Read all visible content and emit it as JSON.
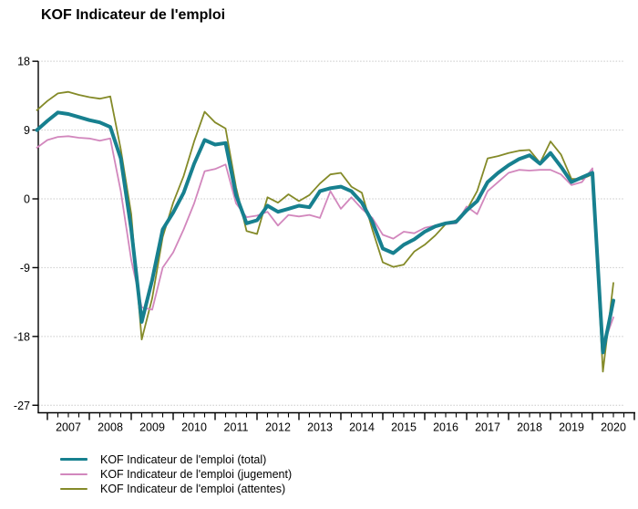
{
  "title": "KOF Indicateur de l'emploi",
  "chart_data": {
    "type": "line",
    "title": "KOF Indicateur de l'emploi",
    "xlabel": "",
    "ylabel": "",
    "ylim": [
      -27,
      18
    ],
    "yticks": [
      18,
      9,
      0,
      -9,
      -18,
      -27
    ],
    "xtick_years": [
      "2007",
      "2008",
      "2009",
      "2010",
      "2011",
      "2012",
      "2013",
      "2014",
      "2015",
      "2016",
      "2017",
      "2018",
      "2019",
      "2020"
    ],
    "grid": true,
    "legend_position": "bottom-left",
    "categories": [
      "2006Q4",
      "2007Q1",
      "2007Q2",
      "2007Q3",
      "2007Q4",
      "2008Q1",
      "2008Q2",
      "2008Q3",
      "2008Q4",
      "2009Q1",
      "2009Q2",
      "2009Q3",
      "2009Q4",
      "2010Q1",
      "2010Q2",
      "2010Q3",
      "2010Q4",
      "2011Q1",
      "2011Q2",
      "2011Q3",
      "2011Q4",
      "2012Q1",
      "2012Q2",
      "2012Q3",
      "2012Q4",
      "2013Q1",
      "2013Q2",
      "2013Q3",
      "2013Q4",
      "2014Q1",
      "2014Q2",
      "2014Q3",
      "2014Q4",
      "2015Q1",
      "2015Q2",
      "2015Q3",
      "2015Q4",
      "2016Q1",
      "2016Q2",
      "2016Q3",
      "2016Q4",
      "2017Q1",
      "2017Q2",
      "2017Q3",
      "2017Q4",
      "2018Q1",
      "2018Q2",
      "2018Q3",
      "2018Q4",
      "2019Q1",
      "2019Q2",
      "2019Q3",
      "2019Q4",
      "2020Q1",
      "2020Q2",
      "2020Q3"
    ],
    "series": [
      {
        "name": "KOF Indicateur de l'emploi (total)",
        "color": "#17808f",
        "width": 4,
        "values": [
          9.0,
          10.2,
          11.3,
          11.1,
          10.7,
          10.3,
          10.0,
          9.4,
          5.3,
          -4.0,
          -16.1,
          -10.6,
          -4.0,
          -1.8,
          0.8,
          4.6,
          7.7,
          7.1,
          7.3,
          0.5,
          -3.2,
          -2.8,
          -0.9,
          -1.7,
          -1.3,
          -0.9,
          -1.1,
          1.0,
          1.4,
          1.6,
          1.0,
          -0.5,
          -3.0,
          -6.5,
          -7.1,
          -6.0,
          -5.3,
          -4.3,
          -3.6,
          -3.2,
          -3.0,
          -1.5,
          -0.3,
          2.2,
          3.4,
          4.4,
          5.2,
          5.7,
          4.6,
          6.0,
          4.2,
          2.2,
          2.8,
          3.4,
          -20.1,
          -13.3
        ]
      },
      {
        "name": "KOF Indicateur de l'emploi (jugement)",
        "color": "#d287bd",
        "width": 1.8,
        "values": [
          6.7,
          7.7,
          8.1,
          8.2,
          8.0,
          7.9,
          7.6,
          7.9,
          1.0,
          -8.0,
          -14.2,
          -14.5,
          -9.0,
          -7.0,
          -4.0,
          -0.6,
          3.6,
          3.9,
          4.5,
          -0.6,
          -2.4,
          -2.2,
          -1.7,
          -3.5,
          -2.1,
          -2.3,
          -2.1,
          -2.5,
          1.0,
          -1.3,
          0.2,
          -1.3,
          -2.5,
          -4.7,
          -5.2,
          -4.3,
          -4.5,
          -3.8,
          -3.5,
          -3.3,
          -3.2,
          -1.0,
          -2.0,
          1.0,
          2.2,
          3.4,
          3.8,
          3.7,
          3.8,
          3.8,
          3.2,
          1.8,
          2.2,
          4.0,
          -19.3,
          -15.5
        ]
      },
      {
        "name": "KOF Indicateur de l'emploi (attentes)",
        "color": "#848a28",
        "width": 1.8,
        "values": [
          11.6,
          12.8,
          13.8,
          14.0,
          13.6,
          13.3,
          13.1,
          13.4,
          6.5,
          -2.0,
          -18.4,
          -13.0,
          -5.0,
          -0.5,
          3.0,
          7.5,
          11.4,
          10.0,
          9.2,
          1.5,
          -4.2,
          -4.6,
          0.2,
          -0.5,
          0.6,
          -0.3,
          0.5,
          2.0,
          3.2,
          3.4,
          1.6,
          0.8,
          -4.0,
          -8.3,
          -8.9,
          -8.6,
          -6.9,
          -6.0,
          -4.8,
          -3.3,
          -2.8,
          -1.5,
          1.0,
          5.3,
          5.6,
          6.0,
          6.3,
          6.4,
          4.7,
          7.5,
          5.8,
          2.6,
          2.6,
          3.2,
          -22.6,
          -11.0
        ]
      }
    ]
  },
  "legend": {
    "items": [
      {
        "label": "KOF Indicateur de l'emploi (total)"
      },
      {
        "label": "KOF Indicateur de l'emploi (jugement)"
      },
      {
        "label": "KOF Indicateur de l'emploi (attentes)"
      }
    ]
  }
}
